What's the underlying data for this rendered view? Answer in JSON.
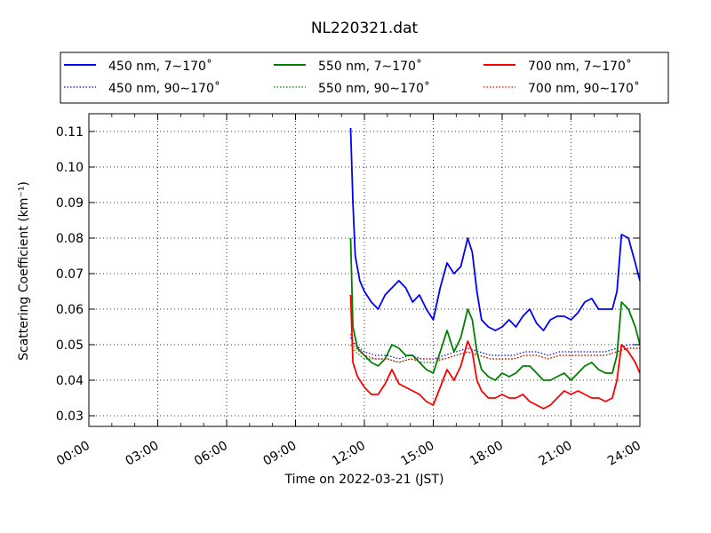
{
  "chart_data": {
    "type": "line",
    "title": "NL220321.dat",
    "xlabel": "Time on 2022-03-21 (JST)",
    "ylabel": "Scattering Coefficient (km⁻¹)",
    "x_unit": "hours",
    "xlim": [
      0,
      24
    ],
    "ylim": [
      0.027,
      0.115
    ],
    "x_ticks": [
      0,
      3,
      6,
      9,
      12,
      15,
      18,
      21,
      24
    ],
    "x_tick_labels": [
      "00:00",
      "03:00",
      "06:00",
      "09:00",
      "12:00",
      "15:00",
      "18:00",
      "21:00",
      "24:00"
    ],
    "y_ticks": [
      0.03,
      0.04,
      0.05,
      0.06,
      0.07,
      0.08,
      0.09,
      0.1,
      0.11
    ],
    "y_tick_labels": [
      "0.03",
      "0.04",
      "0.05",
      "0.06",
      "0.07",
      "0.08",
      "0.09",
      "0.10",
      "0.11"
    ],
    "grid": true,
    "legend_position": "top",
    "series": [
      {
        "name": "450 nm, 7∼170˚",
        "color": "#0000ff",
        "style": "solid",
        "x": [
          11.4,
          11.5,
          11.6,
          11.8,
          12.0,
          12.3,
          12.6,
          12.9,
          13.2,
          13.5,
          13.8,
          14.1,
          14.4,
          14.7,
          15.0,
          15.3,
          15.6,
          15.9,
          16.2,
          16.5,
          16.7,
          16.9,
          17.1,
          17.4,
          17.7,
          18.0,
          18.3,
          18.6,
          18.9,
          19.2,
          19.5,
          19.8,
          20.1,
          20.4,
          20.7,
          21.0,
          21.3,
          21.6,
          21.9,
          22.2,
          22.5,
          22.8,
          23.0,
          23.2,
          23.5,
          23.8,
          24.0
        ],
        "y": [
          0.111,
          0.09,
          0.075,
          0.068,
          0.065,
          0.062,
          0.06,
          0.064,
          0.066,
          0.068,
          0.066,
          0.062,
          0.064,
          0.06,
          0.057,
          0.066,
          0.073,
          0.07,
          0.072,
          0.08,
          0.076,
          0.065,
          0.057,
          0.055,
          0.054,
          0.055,
          0.057,
          0.055,
          0.058,
          0.06,
          0.056,
          0.054,
          0.057,
          0.058,
          0.058,
          0.057,
          0.059,
          0.062,
          0.063,
          0.06,
          0.06,
          0.06,
          0.065,
          0.081,
          0.08,
          0.073,
          0.068
        ]
      },
      {
        "name": "450 nm, 90∼170˚",
        "color": "#0000ff",
        "style": "dotted",
        "x": [
          11.4,
          11.6,
          12.0,
          12.5,
          13.0,
          13.5,
          14.0,
          14.5,
          15.0,
          15.5,
          16.0,
          16.5,
          17.0,
          17.5,
          18.0,
          18.5,
          19.0,
          19.5,
          20.0,
          20.5,
          21.0,
          21.5,
          22.0,
          22.5,
          23.0,
          23.5,
          24.0
        ],
        "y": [
          0.052,
          0.05,
          0.048,
          0.047,
          0.047,
          0.046,
          0.047,
          0.046,
          0.046,
          0.047,
          0.048,
          0.049,
          0.048,
          0.047,
          0.047,
          0.047,
          0.048,
          0.048,
          0.047,
          0.048,
          0.048,
          0.048,
          0.048,
          0.048,
          0.049,
          0.05,
          0.05
        ]
      },
      {
        "name": "550 nm, 7∼170˚",
        "color": "#008000",
        "style": "solid",
        "x": [
          11.4,
          11.5,
          11.7,
          12.0,
          12.3,
          12.6,
          12.9,
          13.2,
          13.5,
          13.8,
          14.1,
          14.4,
          14.7,
          15.0,
          15.3,
          15.6,
          15.9,
          16.2,
          16.5,
          16.7,
          16.9,
          17.1,
          17.4,
          17.7,
          18.0,
          18.3,
          18.6,
          18.9,
          19.2,
          19.5,
          19.8,
          20.1,
          20.4,
          20.7,
          21.0,
          21.3,
          21.6,
          21.9,
          22.2,
          22.5,
          22.8,
          23.0,
          23.2,
          23.5,
          23.8,
          24.0
        ],
        "y": [
          0.08,
          0.055,
          0.049,
          0.047,
          0.045,
          0.044,
          0.046,
          0.05,
          0.049,
          0.047,
          0.047,
          0.045,
          0.043,
          0.042,
          0.048,
          0.054,
          0.048,
          0.052,
          0.06,
          0.057,
          0.048,
          0.043,
          0.041,
          0.04,
          0.042,
          0.041,
          0.042,
          0.044,
          0.044,
          0.042,
          0.04,
          0.04,
          0.041,
          0.042,
          0.04,
          0.042,
          0.044,
          0.045,
          0.043,
          0.042,
          0.042,
          0.047,
          0.062,
          0.06,
          0.055,
          0.05
        ]
      },
      {
        "name": "550 nm, 90∼170˚",
        "color": "#008000",
        "style": "dotted",
        "x": [
          11.4,
          11.6,
          12.0,
          12.5,
          13.0,
          13.5,
          14.0,
          14.5,
          15.0,
          15.5,
          16.0,
          16.5,
          17.0,
          17.5,
          18.0,
          18.5,
          19.0,
          19.5,
          20.0,
          20.5,
          21.0,
          21.5,
          22.0,
          22.5,
          23.0,
          23.5,
          24.0
        ],
        "y": [
          0.05,
          0.048,
          0.046,
          0.046,
          0.046,
          0.045,
          0.046,
          0.045,
          0.045,
          0.046,
          0.047,
          0.048,
          0.047,
          0.046,
          0.046,
          0.046,
          0.047,
          0.047,
          0.046,
          0.047,
          0.047,
          0.047,
          0.047,
          0.047,
          0.048,
          0.049,
          0.049
        ]
      },
      {
        "name": "700 nm, 7∼170˚",
        "color": "#ff0000",
        "style": "solid",
        "x": [
          11.4,
          11.5,
          11.7,
          12.0,
          12.3,
          12.6,
          12.9,
          13.2,
          13.5,
          13.8,
          14.1,
          14.4,
          14.7,
          15.0,
          15.3,
          15.6,
          15.9,
          16.2,
          16.5,
          16.7,
          16.9,
          17.1,
          17.4,
          17.7,
          18.0,
          18.3,
          18.6,
          18.9,
          19.2,
          19.5,
          19.8,
          20.1,
          20.4,
          20.7,
          21.0,
          21.3,
          21.6,
          21.9,
          22.2,
          22.5,
          22.8,
          23.0,
          23.2,
          23.5,
          23.8,
          24.0
        ],
        "y": [
          0.064,
          0.045,
          0.041,
          0.038,
          0.036,
          0.036,
          0.039,
          0.043,
          0.039,
          0.038,
          0.037,
          0.036,
          0.034,
          0.033,
          0.038,
          0.043,
          0.04,
          0.044,
          0.051,
          0.048,
          0.04,
          0.037,
          0.035,
          0.035,
          0.036,
          0.035,
          0.035,
          0.036,
          0.034,
          0.033,
          0.032,
          0.033,
          0.035,
          0.037,
          0.036,
          0.037,
          0.036,
          0.035,
          0.035,
          0.034,
          0.035,
          0.04,
          0.05,
          0.048,
          0.045,
          0.042
        ]
      },
      {
        "name": "700 nm, 90∼170˚",
        "color": "#ff0000",
        "style": "dotted",
        "x": [
          11.4,
          11.6,
          12.0,
          12.5,
          13.0,
          13.5,
          14.0,
          14.5,
          15.0,
          15.5,
          16.0,
          16.5,
          17.0,
          17.5,
          18.0,
          18.5,
          19.0,
          19.5,
          20.0,
          20.5,
          21.0,
          21.5,
          22.0,
          22.5,
          23.0,
          23.5,
          24.0
        ],
        "y": [
          0.053,
          0.049,
          0.047,
          0.046,
          0.046,
          0.045,
          0.046,
          0.046,
          0.046,
          0.046,
          0.047,
          0.048,
          0.047,
          0.046,
          0.046,
          0.046,
          0.047,
          0.047,
          0.046,
          0.047,
          0.047,
          0.047,
          0.047,
          0.047,
          0.048,
          0.049,
          0.049
        ]
      }
    ]
  }
}
